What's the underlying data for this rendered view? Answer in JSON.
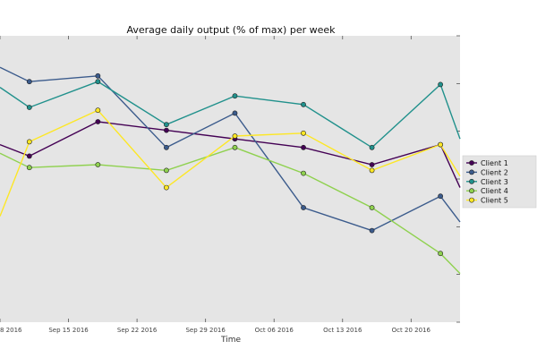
{
  "chart_data": {
    "type": "line",
    "title": "Average daily output (% of max) per week",
    "xlabel": "Time",
    "ylabel": "",
    "x_tick_labels": [
      "8 2016",
      "Sep 15 2016",
      "Sep 22 2016",
      "Sep 29 2016",
      "Oct 06 2016",
      "Oct 13 2016",
      "Oct 20 2016"
    ],
    "x_tick_days": [
      8,
      15,
      22,
      29,
      36,
      43,
      50
    ],
    "xlim_days": [
      8,
      55
    ],
    "ylim": [
      0,
      100
    ],
    "y_ticks": [
      0,
      16.7,
      33.3,
      50,
      66.7,
      83.3,
      100
    ],
    "grid": false,
    "legend_position": "right",
    "x_days": [
      8,
      11,
      18,
      25,
      32,
      39,
      46,
      53,
      55
    ],
    "series": [
      {
        "name": "Client 1",
        "color": "#440154",
        "values": [
          62,
          58,
          70,
          67,
          64,
          61,
          55,
          62,
          47
        ]
      },
      {
        "name": "Client 2",
        "color": "#3b5b8c",
        "values": [
          89,
          84,
          86,
          61,
          73,
          40,
          32,
          44,
          35
        ]
      },
      {
        "name": "Client 3",
        "color": "#21918c",
        "values": [
          82,
          75,
          84,
          69,
          79,
          76,
          61,
          83,
          64
        ]
      },
      {
        "name": "Client 4",
        "color": "#8fd14f",
        "values": [
          59,
          54,
          55,
          53,
          61,
          52,
          40,
          24,
          17
        ]
      },
      {
        "name": "Client 5",
        "color": "#fde725",
        "values": [
          37,
          63,
          74,
          47,
          65,
          66,
          53,
          62,
          51
        ]
      }
    ]
  }
}
